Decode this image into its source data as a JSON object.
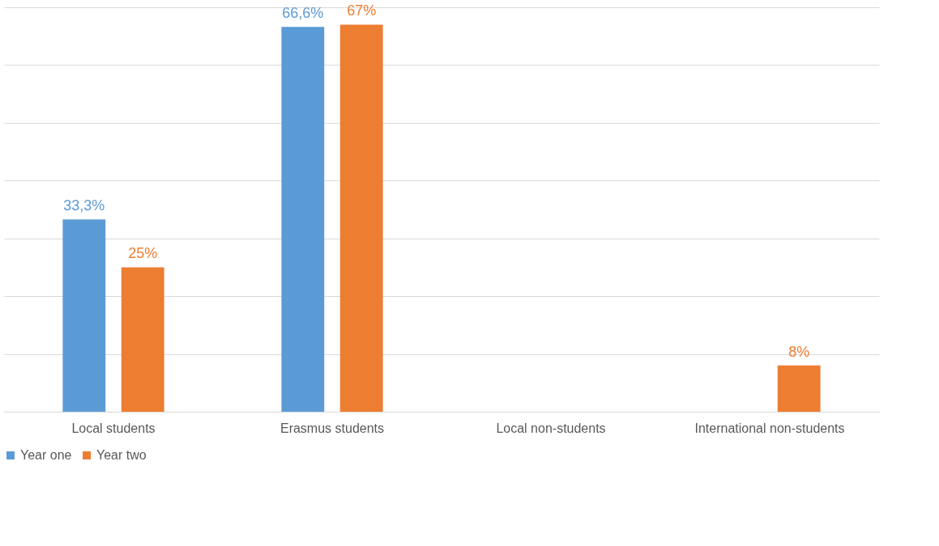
{
  "chart_data": {
    "type": "bar",
    "categories": [
      "Local students",
      "Erasmus students",
      "Local non-students",
      "International non-students"
    ],
    "series": [
      {
        "name": "Year one",
        "color": "#5b9bd5",
        "values": [
          33.3,
          66.6,
          null,
          null
        ],
        "value_labels": [
          "33,3%",
          "66,6%",
          null,
          null
        ]
      },
      {
        "name": "Year two",
        "color": "#ed7d31",
        "values": [
          25,
          67,
          null,
          8
        ],
        "value_labels": [
          "25%",
          "67%",
          null,
          "8%"
        ]
      }
    ],
    "tick_labels": "x",
    "grid": "y",
    "legend": "bottom"
  }
}
